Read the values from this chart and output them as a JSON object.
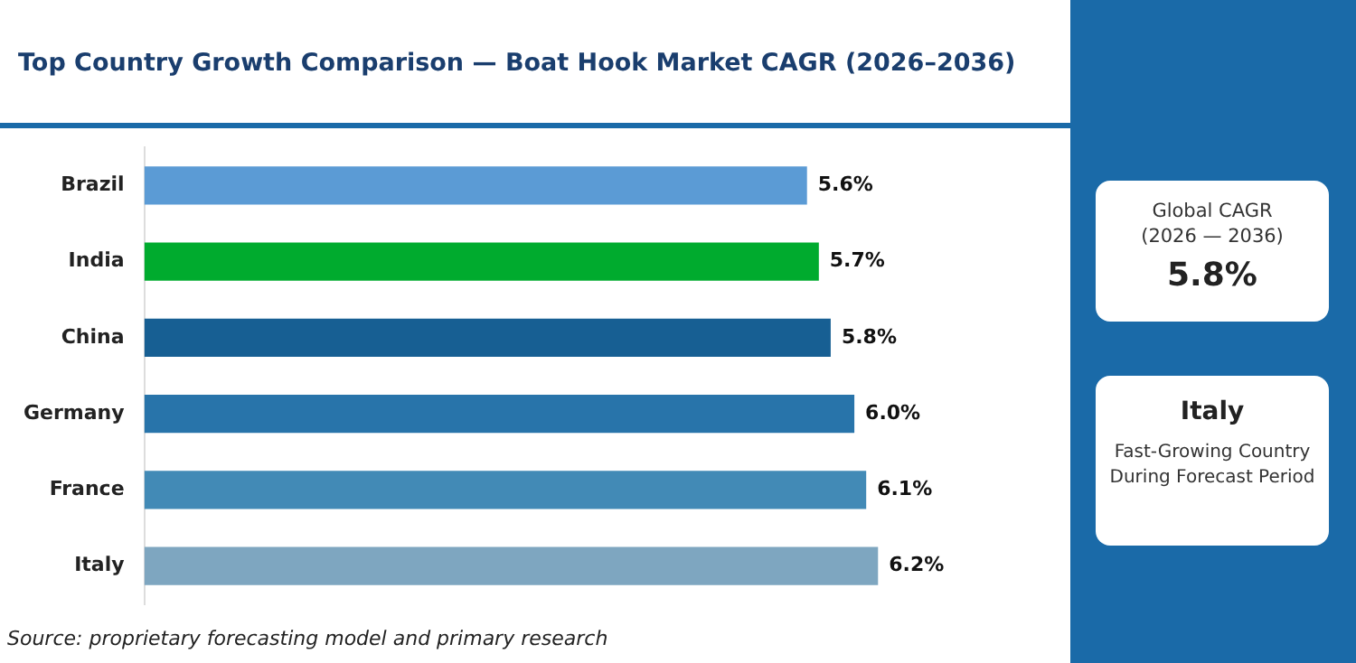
{
  "chart_data": {
    "type": "bar",
    "orientation": "horizontal",
    "title": "Top Country Growth Comparison — Boat Hook Market CAGR (2026–2036)",
    "categories": [
      "Brazil",
      "India",
      "China",
      "Germany",
      "France",
      "Italy"
    ],
    "values": [
      5.6,
      5.7,
      5.8,
      6.0,
      6.1,
      6.2
    ],
    "colors": [
      "#5b9bd5",
      "#00ab2e",
      "#175f93",
      "#2874aa",
      "#428ab6",
      "#7ea6c0"
    ],
    "value_labels": [
      "5.6%",
      "5.7%",
      "5.8%",
      "6.0%",
      "6.1%",
      "6.2%"
    ],
    "tick_labels": "y",
    "grid": false,
    "legend": false,
    "annotations": [
      "Global CAGR (2026 — 2036)",
      "5.8%",
      "Italy",
      "Fast-Growing Country During Forecast Period",
      "Source: proprietary forecasting model and primary research"
    ]
  }
}
